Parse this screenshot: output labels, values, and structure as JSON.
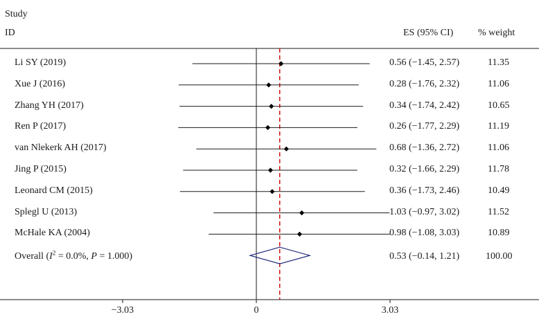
{
  "header": {
    "study_label": "Study",
    "id_label": "ID",
    "es_label": "ES (95% CI)",
    "weight_label": "% weight"
  },
  "chart_data": {
    "type": "forest",
    "studies": [
      {
        "name": "Li SY (2019)",
        "es": 0.56,
        "lo": -1.45,
        "hi": 2.57,
        "ci_text": "0.56 (−1.45, 2.57)",
        "weight": "11.35"
      },
      {
        "name": "Xue J (2016)",
        "es": 0.28,
        "lo": -1.76,
        "hi": 2.32,
        "ci_text": "0.28 (−1.76, 2.32)",
        "weight": "11.06"
      },
      {
        "name": "Zhang YH (2017)",
        "es": 0.34,
        "lo": -1.74,
        "hi": 2.42,
        "ci_text": "0.34 (−1.74, 2.42)",
        "weight": "10.65"
      },
      {
        "name": "Ren P (2017)",
        "es": 0.26,
        "lo": -1.77,
        "hi": 2.29,
        "ci_text": "0.26 (−1.77, 2.29)",
        "weight": "11.19"
      },
      {
        "name": "van Nlekerk AH (2017)",
        "es": 0.68,
        "lo": -1.36,
        "hi": 2.72,
        "ci_text": "0.68 (−1.36, 2.72)",
        "weight": "11.06"
      },
      {
        "name": "Jing P (2015)",
        "es": 0.32,
        "lo": -1.66,
        "hi": 2.29,
        "ci_text": "0.32 (−1.66, 2.29)",
        "weight": "11.78"
      },
      {
        "name": "Leonard CM (2015)",
        "es": 0.36,
        "lo": -1.73,
        "hi": 2.46,
        "ci_text": "0.36 (−1.73, 2.46)",
        "weight": "10.49"
      },
      {
        "name": "Splegl U (2013)",
        "es": 1.03,
        "lo": -0.97,
        "hi": 3.02,
        "ci_text": "1.03 (−0.97, 3.02)",
        "weight": "11.52"
      },
      {
        "name": "McHale KA (2004)",
        "es": 0.98,
        "lo": -1.08,
        "hi": 3.03,
        "ci_text": "0.98 (−1.08, 3.03)",
        "weight": "10.89"
      }
    ],
    "overall": {
      "label_prefix": "Overall (",
      "i_symbol": "I",
      "sup": "2",
      "label_rest": " = 0.0%, ",
      "p_symbol": "P",
      "label_end": " = 1.000)",
      "es": 0.53,
      "lo": -0.14,
      "hi": 1.21,
      "ci_text": "0.53 (−0.14, 1.21)",
      "weight": "100.00"
    },
    "xlim": [
      -4.5,
      5.2
    ],
    "xticks": [
      -3.03,
      0,
      3.03
    ],
    "xtick_labels": [
      "−3.03",
      "0",
      "3.03"
    ],
    "null_line": 0,
    "pooled_line": 0.53,
    "colors": {
      "pooled_line": "#d00000",
      "diamond": "#1f2a7a",
      "marker": "#000000"
    }
  }
}
